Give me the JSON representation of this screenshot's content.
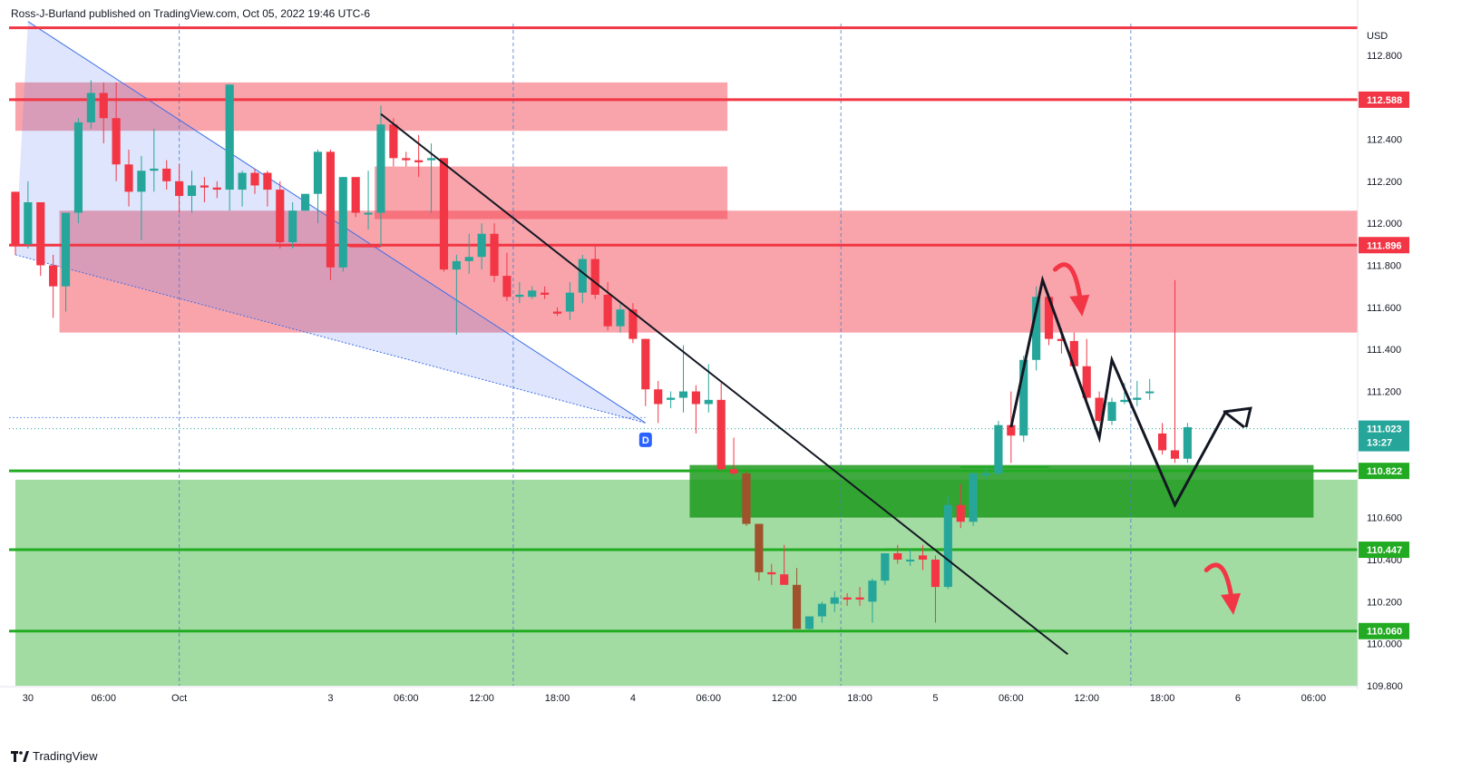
{
  "attribution": "Ross-J-Burland published on TradingView.com, Oct 05, 2022 19:46 UTC-6",
  "brand": "TradingView",
  "colors": {
    "up": "#26a69a",
    "down": "#f23645",
    "down_alt": "#a0522d",
    "resistance": "#f23645",
    "support": "#22ab22",
    "price": "#26a69a"
  },
  "chart_data": {
    "type": "candlestick",
    "currency": "USD",
    "ylim": [
      109.8,
      112.95
    ],
    "y_ticks": [
      "112.800",
      "112.400",
      "112.200",
      "112.000",
      "111.800",
      "111.600",
      "111.400",
      "111.200",
      "110.600",
      "110.400",
      "110.200",
      "110.000",
      "109.800"
    ],
    "x_ticks": [
      {
        "label": "30",
        "t": -3
      },
      {
        "label": "06:00",
        "t": 3
      },
      {
        "label": "Oct",
        "t": 9
      },
      {
        "label": "3",
        "t": 21
      },
      {
        "label": "06:00",
        "t": 27
      },
      {
        "label": "12:00",
        "t": 33
      },
      {
        "label": "18:00",
        "t": 39
      },
      {
        "label": "4",
        "t": 45
      },
      {
        "label": "06:00",
        "t": 51
      },
      {
        "label": "12:00",
        "t": 57
      },
      {
        "label": "18:00",
        "t": 63
      },
      {
        "label": "5",
        "t": 69
      },
      {
        "label": "06:00",
        "t": 75
      },
      {
        "label": "12:00",
        "t": 81
      },
      {
        "label": "18:00",
        "t": 87
      },
      {
        "label": "6",
        "t": 93
      },
      {
        "label": "06:00",
        "t": 99
      }
    ],
    "session_lines_t": [
      9,
      35.5,
      61.5,
      84.5
    ],
    "level_lines": [
      {
        "value": 112.93,
        "color": "resistance",
        "label": ""
      },
      {
        "value": 112.588,
        "color": "resistance",
        "label": "112.588"
      },
      {
        "value": 111.896,
        "color": "resistance",
        "label": "111.896"
      },
      {
        "value": 110.822,
        "color": "support",
        "label": "110.822"
      },
      {
        "value": 110.447,
        "color": "support",
        "label": "110.447"
      },
      {
        "value": 110.06,
        "color": "support",
        "label": "110.060"
      }
    ],
    "current_price": {
      "value": 111.023,
      "label": "111.023",
      "countdown": "13:27"
    },
    "zones": [
      {
        "kind": "resistance",
        "t0": -4,
        "t1": 52.5,
        "y0": 112.44,
        "y1": 112.67
      },
      {
        "kind": "resistance",
        "t0": 24.5,
        "t1": 52.5,
        "y0": 112.02,
        "y1": 112.27
      },
      {
        "kind": "resistance",
        "t0": -0.5,
        "t1": 104,
        "y0": 111.48,
        "y1": 112.06
      },
      {
        "kind": "support",
        "t0": -4,
        "t1": 104,
        "y0": 109.8,
        "y1": 110.78
      },
      {
        "kind": "support_dark",
        "t0": 49.5,
        "t1": 99,
        "y0": 110.6,
        "y1": 110.85
      }
    ],
    "wedge": {
      "upper": [
        [
          -3,
          112.96
        ],
        [
          46,
          111.05
        ]
      ],
      "lower": [
        [
          -4,
          111.85
        ],
        [
          46,
          111.05
        ]
      ],
      "label": "D",
      "label_at": [
        46,
        110.97
      ]
    },
    "trendline": [
      [
        25,
        112.52
      ],
      [
        79.5,
        109.95
      ]
    ],
    "minor_levels": [
      {
        "t0": 22.5,
        "t1": 25,
        "value": 111.89
      },
      {
        "t0": 71,
        "t1": 78,
        "value": 110.84
      },
      {
        "t0": 65,
        "t1": 70,
        "value": 110.45
      }
    ],
    "path_projection": [
      [
        75,
        111.03
      ],
      [
        77.5,
        111.73
      ],
      [
        82,
        110.98
      ],
      [
        83,
        111.35
      ],
      [
        88,
        110.66
      ],
      [
        92,
        111.1
      ],
      [
        93.5,
        111.03
      ]
    ],
    "path_arrow_to": [
      94,
      111.12
    ],
    "curved_arrows": [
      {
        "from": [
          78.5,
          111.78
        ],
        "to": [
          80.5,
          111.6
        ]
      },
      {
        "from": [
          90.5,
          110.35
        ],
        "to": [
          92.5,
          110.18
        ]
      }
    ],
    "candles": [
      {
        "t": -4,
        "o": 112.15,
        "h": 112.15,
        "l": 111.85,
        "c": 111.9
      },
      {
        "t": -3,
        "o": 111.9,
        "h": 112.2,
        "l": 111.88,
        "c": 112.1
      },
      {
        "t": -2,
        "o": 112.1,
        "h": 112.1,
        "l": 111.75,
        "c": 111.8
      },
      {
        "t": -1,
        "o": 111.8,
        "h": 111.85,
        "l": 111.55,
        "c": 111.7
      },
      {
        "t": 0,
        "o": 111.7,
        "h": 112.05,
        "l": 111.58,
        "c": 112.05
      },
      {
        "t": 1,
        "o": 112.05,
        "h": 112.5,
        "l": 112.0,
        "c": 112.48
      },
      {
        "t": 2,
        "o": 112.48,
        "h": 112.68,
        "l": 112.45,
        "c": 112.62
      },
      {
        "t": 3,
        "o": 112.62,
        "h": 112.67,
        "l": 112.38,
        "c": 112.5
      },
      {
        "t": 4,
        "o": 112.5,
        "h": 112.67,
        "l": 112.2,
        "c": 112.28
      },
      {
        "t": 5,
        "o": 112.28,
        "h": 112.35,
        "l": 112.08,
        "c": 112.15
      },
      {
        "t": 6,
        "o": 112.15,
        "h": 112.32,
        "l": 111.92,
        "c": 112.25
      },
      {
        "t": 7,
        "o": 112.25,
        "h": 112.45,
        "l": 112.15,
        "c": 112.26
      },
      {
        "t": 8,
        "o": 112.26,
        "h": 112.3,
        "l": 112.16,
        "c": 112.2
      },
      {
        "t": 9,
        "o": 112.2,
        "h": 112.28,
        "l": 112.05,
        "c": 112.13
      },
      {
        "t": 10,
        "o": 112.13,
        "h": 112.25,
        "l": 112.05,
        "c": 112.18
      },
      {
        "t": 11,
        "o": 112.18,
        "h": 112.22,
        "l": 112.1,
        "c": 112.17
      },
      {
        "t": 12,
        "o": 112.17,
        "h": 112.2,
        "l": 112.12,
        "c": 112.16
      },
      {
        "t": 13,
        "o": 112.16,
        "h": 112.66,
        "l": 112.06,
        "c": 112.66
      },
      {
        "t": 14,
        "o": 112.16,
        "h": 112.25,
        "l": 112.08,
        "c": 112.24
      },
      {
        "t": 15,
        "o": 112.24,
        "h": 112.26,
        "l": 112.14,
        "c": 112.18
      },
      {
        "t": 16,
        "o": 112.24,
        "h": 112.25,
        "l": 112.08,
        "c": 112.16
      },
      {
        "t": 17,
        "o": 112.16,
        "h": 112.2,
        "l": 111.88,
        "c": 111.91
      },
      {
        "t": 18,
        "o": 111.91,
        "h": 112.1,
        "l": 111.88,
        "c": 112.06
      },
      {
        "t": 19,
        "o": 112.06,
        "h": 112.14,
        "l": 112.06,
        "c": 112.14
      },
      {
        "t": 20,
        "o": 112.14,
        "h": 112.35,
        "l": 112.0,
        "c": 112.34
      },
      {
        "t": 21,
        "o": 112.34,
        "h": 112.35,
        "l": 111.73,
        "c": 111.79
      },
      {
        "t": 22,
        "o": 111.79,
        "h": 112.22,
        "l": 111.77,
        "c": 112.22
      },
      {
        "t": 23,
        "o": 112.22,
        "h": 112.22,
        "l": 112.03,
        "c": 112.05
      },
      {
        "t": 24,
        "o": 112.05,
        "h": 112.25,
        "l": 111.97,
        "c": 112.05
      },
      {
        "t": 25,
        "o": 112.05,
        "h": 112.56,
        "l": 111.89,
        "c": 112.47
      },
      {
        "t": 26,
        "o": 112.47,
        "h": 112.5,
        "l": 112.27,
        "c": 112.31
      },
      {
        "t": 27,
        "o": 112.31,
        "h": 112.34,
        "l": 112.27,
        "c": 112.3
      },
      {
        "t": 28,
        "o": 112.3,
        "h": 112.42,
        "l": 112.22,
        "c": 112.29
      },
      {
        "t": 29,
        "o": 112.3,
        "h": 112.38,
        "l": 112.05,
        "c": 112.31
      },
      {
        "t": 30,
        "o": 112.31,
        "h": 112.31,
        "l": 111.77,
        "c": 111.78
      },
      {
        "t": 31,
        "o": 111.78,
        "h": 111.85,
        "l": 111.47,
        "c": 111.82
      },
      {
        "t": 32,
        "o": 111.82,
        "h": 111.95,
        "l": 111.76,
        "c": 111.84
      },
      {
        "t": 33,
        "o": 111.84,
        "h": 112.0,
        "l": 111.78,
        "c": 111.95
      },
      {
        "t": 34,
        "o": 111.95,
        "h": 112.0,
        "l": 111.72,
        "c": 111.75
      },
      {
        "t": 35,
        "o": 111.75,
        "h": 111.86,
        "l": 111.63,
        "c": 111.65
      },
      {
        "t": 36,
        "o": 111.65,
        "h": 111.72,
        "l": 111.62,
        "c": 111.66
      },
      {
        "t": 37,
        "o": 111.65,
        "h": 111.7,
        "l": 111.64,
        "c": 111.68
      },
      {
        "t": 38,
        "o": 111.67,
        "h": 111.7,
        "l": 111.64,
        "c": 111.66
      },
      {
        "t": 39,
        "o": 111.58,
        "h": 111.6,
        "l": 111.56,
        "c": 111.57
      },
      {
        "t": 40,
        "o": 111.58,
        "h": 111.72,
        "l": 111.54,
        "c": 111.67
      },
      {
        "t": 41,
        "o": 111.67,
        "h": 111.85,
        "l": 111.62,
        "c": 111.83
      },
      {
        "t": 42,
        "o": 111.83,
        "h": 111.89,
        "l": 111.64,
        "c": 111.66
      },
      {
        "t": 43,
        "o": 111.66,
        "h": 111.72,
        "l": 111.49,
        "c": 111.51
      },
      {
        "t": 44,
        "o": 111.51,
        "h": 111.62,
        "l": 111.48,
        "c": 111.59
      },
      {
        "t": 45,
        "o": 111.59,
        "h": 111.62,
        "l": 111.43,
        "c": 111.45
      },
      {
        "t": 46,
        "o": 111.45,
        "h": 111.45,
        "l": 111.13,
        "c": 111.21
      },
      {
        "t": 47,
        "o": 111.21,
        "h": 111.25,
        "l": 111.05,
        "c": 111.14
      },
      {
        "t": 48,
        "o": 111.16,
        "h": 111.2,
        "l": 111.12,
        "c": 111.17
      },
      {
        "t": 49,
        "o": 111.17,
        "h": 111.42,
        "l": 111.1,
        "c": 111.2
      },
      {
        "t": 50,
        "o": 111.2,
        "h": 111.23,
        "l": 111.0,
        "c": 111.14
      },
      {
        "t": 51,
        "o": 111.14,
        "h": 111.33,
        "l": 111.1,
        "c": 111.16
      },
      {
        "t": 52,
        "o": 111.16,
        "h": 111.24,
        "l": 110.82,
        "c": 110.83
      },
      {
        "t": 53,
        "o": 110.83,
        "h": 110.98,
        "l": 110.8,
        "c": 110.81
      },
      {
        "t": 54,
        "o": 110.81,
        "h": 110.82,
        "l": 110.56,
        "c": 110.57,
        "alt": true
      },
      {
        "t": 55,
        "o": 110.57,
        "h": 110.57,
        "l": 110.3,
        "c": 110.34,
        "alt": true
      },
      {
        "t": 56,
        "o": 110.34,
        "h": 110.38,
        "l": 110.28,
        "c": 110.33
      },
      {
        "t": 57,
        "o": 110.33,
        "h": 110.47,
        "l": 110.3,
        "c": 110.28
      },
      {
        "t": 58,
        "o": 110.28,
        "h": 110.36,
        "l": 110.07,
        "c": 110.07,
        "alt": true
      },
      {
        "t": 59,
        "o": 110.07,
        "h": 110.12,
        "l": 110.06,
        "c": 110.13
      },
      {
        "t": 60,
        "o": 110.13,
        "h": 110.2,
        "l": 110.1,
        "c": 110.19
      },
      {
        "t": 61,
        "o": 110.19,
        "h": 110.25,
        "l": 110.15,
        "c": 110.22
      },
      {
        "t": 62,
        "o": 110.22,
        "h": 110.24,
        "l": 110.18,
        "c": 110.21
      },
      {
        "t": 63,
        "o": 110.22,
        "h": 110.27,
        "l": 110.18,
        "c": 110.21
      },
      {
        "t": 64,
        "o": 110.2,
        "h": 110.31,
        "l": 110.1,
        "c": 110.3
      },
      {
        "t": 65,
        "o": 110.3,
        "h": 110.43,
        "l": 110.28,
        "c": 110.43
      },
      {
        "t": 66,
        "o": 110.43,
        "h": 110.47,
        "l": 110.38,
        "c": 110.4
      },
      {
        "t": 67,
        "o": 110.4,
        "h": 110.45,
        "l": 110.37,
        "c": 110.4
      },
      {
        "t": 68,
        "o": 110.42,
        "h": 110.47,
        "l": 110.35,
        "c": 110.4
      },
      {
        "t": 69,
        "o": 110.4,
        "h": 110.42,
        "l": 110.1,
        "c": 110.27
      },
      {
        "t": 70,
        "o": 110.27,
        "h": 110.7,
        "l": 110.26,
        "c": 110.66
      },
      {
        "t": 71,
        "o": 110.66,
        "h": 110.76,
        "l": 110.55,
        "c": 110.58
      },
      {
        "t": 72,
        "o": 110.58,
        "h": 110.82,
        "l": 110.56,
        "c": 110.81
      },
      {
        "t": 73,
        "o": 110.8,
        "h": 110.84,
        "l": 110.78,
        "c": 110.81
      },
      {
        "t": 74,
        "o": 110.81,
        "h": 111.06,
        "l": 110.8,
        "c": 111.04
      },
      {
        "t": 75,
        "o": 111.04,
        "h": 111.2,
        "l": 110.86,
        "c": 110.99
      },
      {
        "t": 76,
        "o": 110.99,
        "h": 111.37,
        "l": 110.96,
        "c": 111.35
      },
      {
        "t": 77,
        "o": 111.35,
        "h": 111.7,
        "l": 111.3,
        "c": 111.65
      },
      {
        "t": 78,
        "o": 111.65,
        "h": 111.65,
        "l": 111.42,
        "c": 111.45
      },
      {
        "t": 79,
        "o": 111.45,
        "h": 111.5,
        "l": 111.38,
        "c": 111.44
      },
      {
        "t": 80,
        "o": 111.44,
        "h": 111.48,
        "l": 111.3,
        "c": 111.32
      },
      {
        "t": 81,
        "o": 111.32,
        "h": 111.45,
        "l": 111.15,
        "c": 111.17
      },
      {
        "t": 82,
        "o": 111.17,
        "h": 111.2,
        "l": 111.05,
        "c": 111.06
      },
      {
        "t": 83,
        "o": 111.06,
        "h": 111.17,
        "l": 111.04,
        "c": 111.15
      },
      {
        "t": 84,
        "o": 111.15,
        "h": 111.24,
        "l": 111.14,
        "c": 111.16
      },
      {
        "t": 85,
        "o": 111.16,
        "h": 111.25,
        "l": 111.13,
        "c": 111.17
      },
      {
        "t": 86,
        "o": 111.2,
        "h": 111.26,
        "l": 111.16,
        "c": 111.2
      },
      {
        "t": 87,
        "o": 111.0,
        "h": 111.05,
        "l": 110.9,
        "c": 110.92
      },
      {
        "t": 88,
        "o": 110.92,
        "h": 111.73,
        "l": 110.86,
        "c": 110.88
      },
      {
        "t": 89,
        "o": 110.88,
        "h": 111.05,
        "l": 110.86,
        "c": 111.03
      }
    ]
  }
}
